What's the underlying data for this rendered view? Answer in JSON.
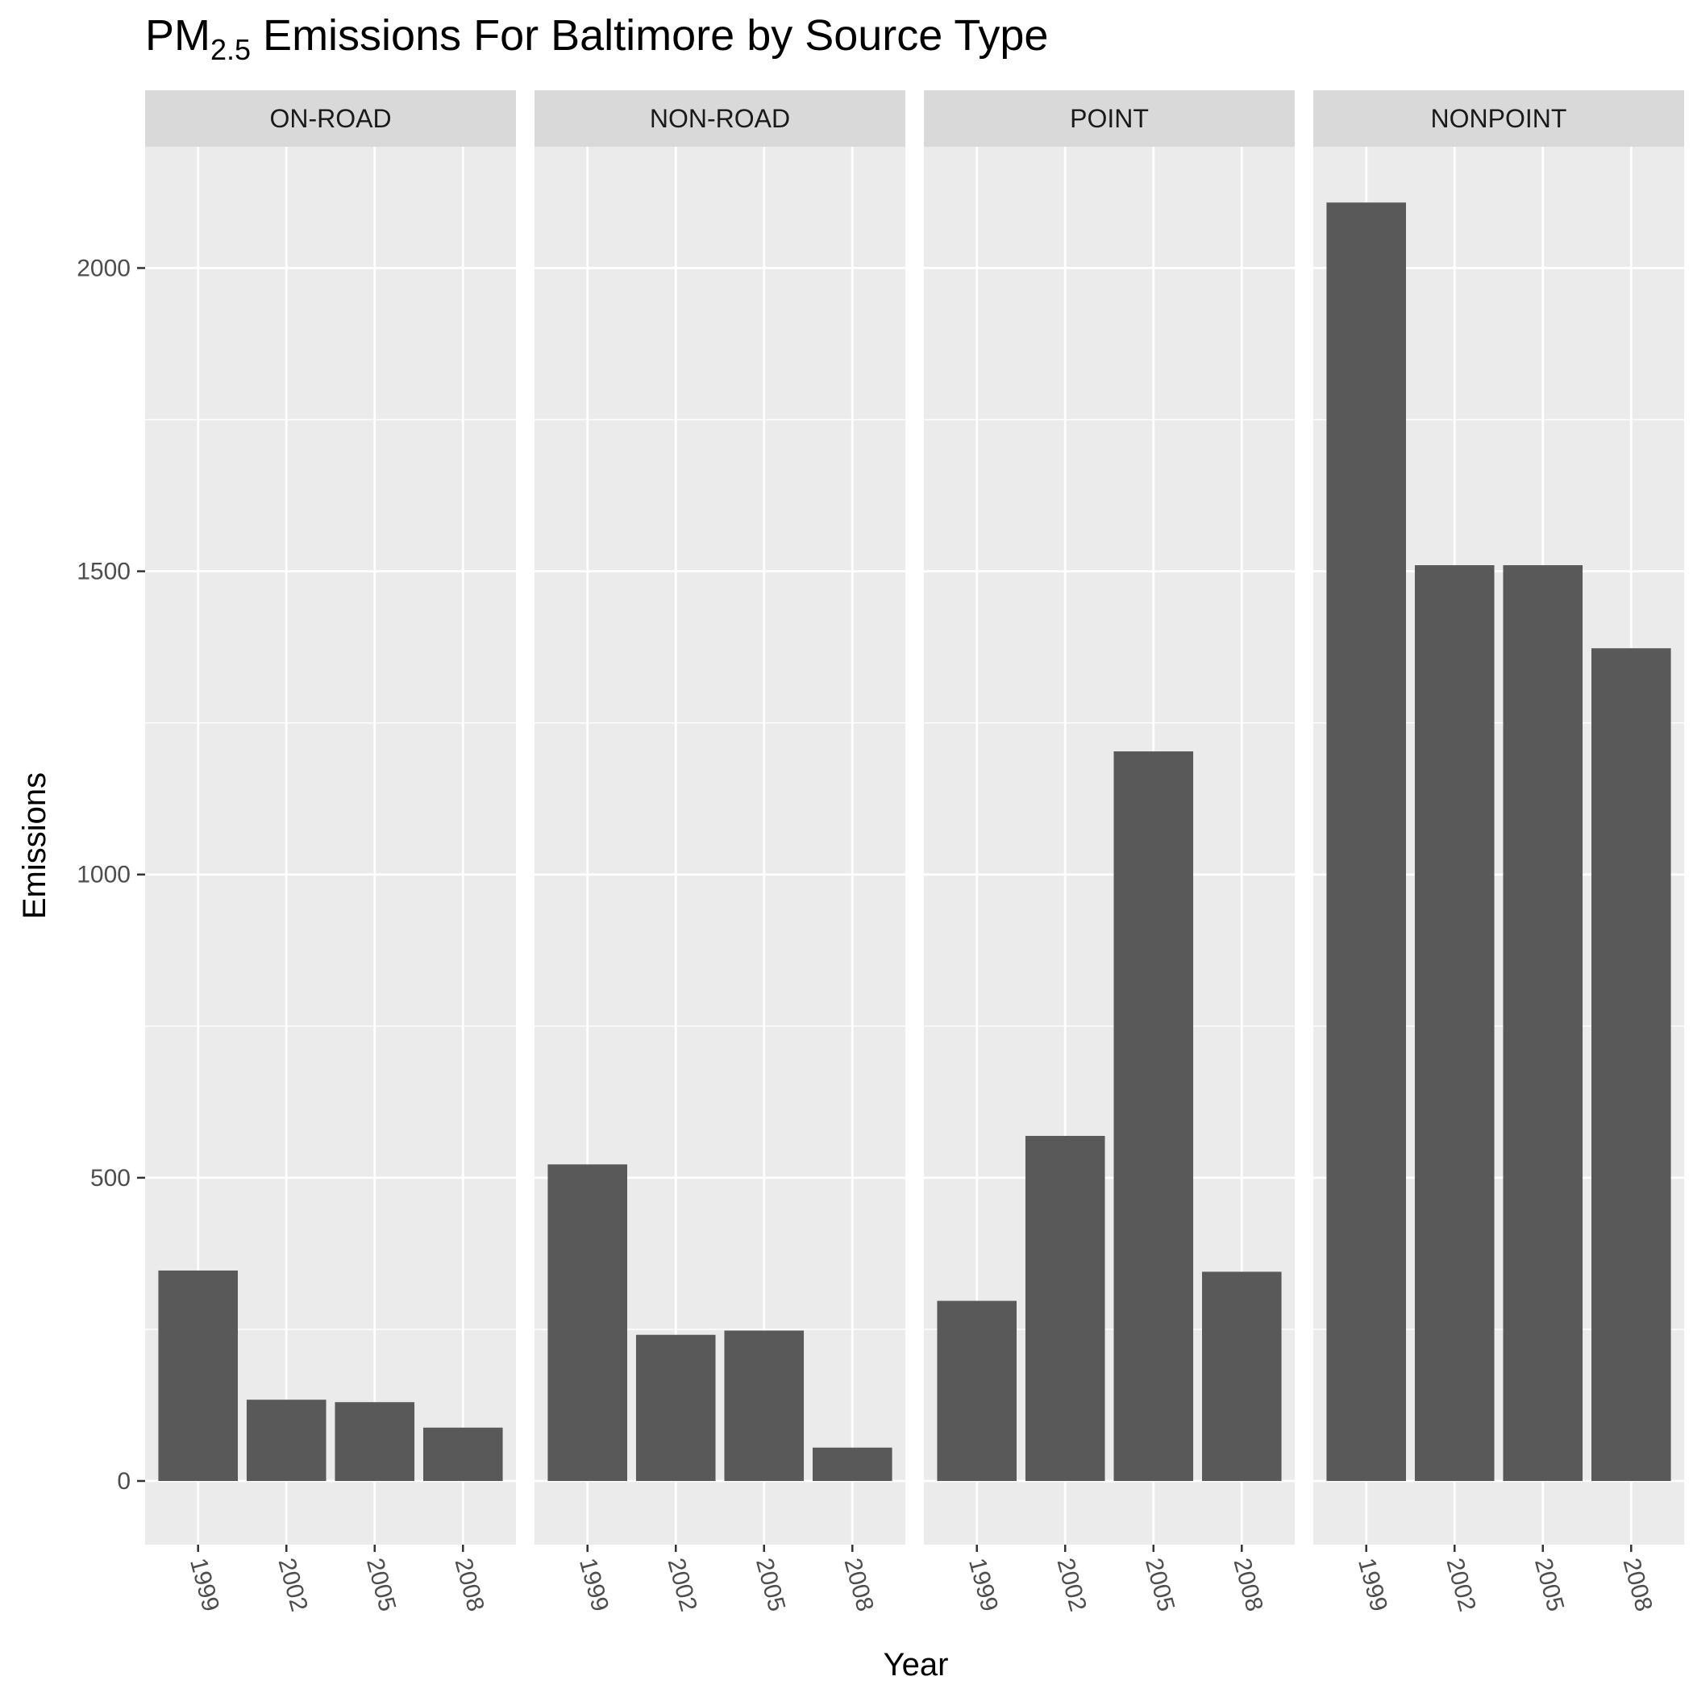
{
  "chart_data": {
    "type": "bar",
    "title": {
      "prefix": "PM",
      "subscript": "2.5",
      "suffix": " Emissions For Baltimore by Source Type"
    },
    "xlabel": "Year",
    "ylabel": "Emissions",
    "categories": [
      "1999",
      "2002",
      "2005",
      "2008"
    ],
    "ylim": [
      -105,
      2200
    ],
    "yticks": [
      0,
      500,
      1000,
      1500,
      2000
    ],
    "grid": true,
    "facets": [
      {
        "name": "ON-ROAD",
        "values": [
          347,
          134,
          130,
          88
        ]
      },
      {
        "name": "NON-ROAD",
        "values": [
          522,
          241,
          248,
          55
        ]
      },
      {
        "name": "POINT",
        "values": [
          297,
          569,
          1203,
          345
        ]
      },
      {
        "name": "NONPOINT",
        "values": [
          2108,
          1510,
          1510,
          1373
        ]
      }
    ],
    "colors": {
      "bar": "#595959",
      "panel_background": "#ebebeb",
      "strip_background": "#d9d9d9",
      "grid": "#ffffff",
      "tick_label": "#4d4d4d"
    }
  }
}
